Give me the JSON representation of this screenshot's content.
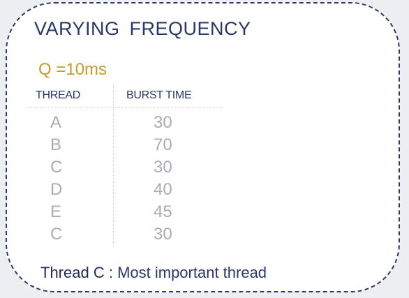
{
  "slide": {
    "title": "VARYING FREQUENCY",
    "quantum": "Q =10ms",
    "table": {
      "headers": {
        "thread": "THREAD",
        "burst": "BURST TIME"
      },
      "rows": [
        {
          "thread": "A",
          "burst": "30"
        },
        {
          "thread": "B",
          "burst": "70"
        },
        {
          "thread": "C",
          "burst": "30"
        },
        {
          "thread": "D",
          "burst": "40"
        },
        {
          "thread": "E",
          "burst": "45"
        },
        {
          "thread": "C",
          "burst": "30"
        }
      ]
    },
    "footer": {
      "label": "Thread C",
      "separator": " : ",
      "text": "Most important thread"
    }
  },
  "colors": {
    "accent": "#c79a2c",
    "primary": "#2a3768",
    "muted": "#a8acb5",
    "border": "#2f3a66"
  }
}
